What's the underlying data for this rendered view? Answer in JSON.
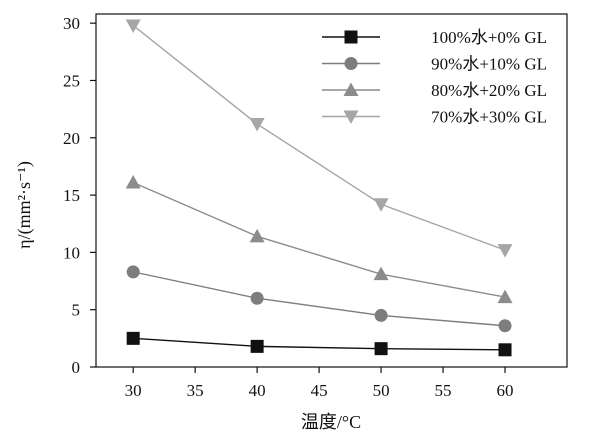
{
  "chart_data": {
    "type": "line",
    "xlabel": "温度/°C",
    "ylabel": "η/(mm²·s⁻¹)",
    "xlim": [
      27,
      65
    ],
    "ylim": [
      0,
      30.8
    ],
    "xticks": [
      30,
      35,
      40,
      45,
      50,
      55,
      60
    ],
    "yticks": [
      0,
      5,
      10,
      15,
      20,
      25,
      30
    ],
    "grid": false,
    "legend_position": "top-right",
    "x": [
      30,
      40,
      50,
      60
    ],
    "series": [
      {
        "name": "100%水+0% GL",
        "marker": "square",
        "color": "#111111",
        "values": [
          2.5,
          1.8,
          1.6,
          1.5
        ]
      },
      {
        "name": "90%水+10% GL",
        "marker": "circle",
        "color": "#7d7d7d",
        "values": [
          8.3,
          6.0,
          4.5,
          3.6
        ]
      },
      {
        "name": "80%水+20% GL",
        "marker": "triangle-up",
        "color": "#8c8c8c",
        "values": [
          16.1,
          11.4,
          8.1,
          6.1
        ]
      },
      {
        "name": "70%水+30% GL",
        "marker": "triangle-down",
        "color": "#a6a6a6",
        "values": [
          29.8,
          21.2,
          14.2,
          10.2
        ]
      }
    ]
  }
}
